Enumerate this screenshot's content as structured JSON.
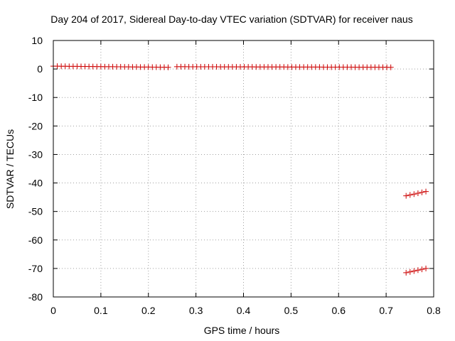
{
  "chart_data": {
    "type": "scatter",
    "title": "Day 204 of 2017, Sidereal Day-to-day VTEC variation (SDTVAR) for receiver naus",
    "xlabel": "GPS time / hours",
    "ylabel": "SDTVAR / TECUs",
    "xlim": [
      0,
      0.8
    ],
    "ylim": [
      -80,
      10
    ],
    "xticks": [
      0,
      0.1,
      0.2,
      0.3,
      0.4,
      0.5,
      0.6,
      0.7,
      0.8
    ],
    "xtick_labels": [
      "0",
      "0.1",
      "0.2",
      "0.3",
      "0.4",
      "0.5",
      "0.6",
      "0.7",
      "0.8"
    ],
    "yticks": [
      10,
      0,
      -10,
      -20,
      -30,
      -40,
      -50,
      -60,
      -70,
      -80
    ],
    "ytick_labels": [
      "10",
      "0",
      "-10",
      "-20",
      "-30",
      "-40",
      "-50",
      "-60",
      "-70",
      "-80"
    ],
    "grid": true,
    "marker": "plus",
    "colors": {
      "series": "#cc0000",
      "grid": "#a0a0a0",
      "axis": "#000000"
    },
    "series": [
      {
        "segments": [
          {
            "x_start": 0.0,
            "x_end": 0.24,
            "step": 0.00833,
            "y_start": 1.0,
            "y_end": 0.6
          },
          {
            "x_start": 0.26,
            "x_end": 0.708,
            "step": 0.00833,
            "y_start": 0.8,
            "y_end": 0.6
          },
          {
            "x_start": 0.742,
            "x_end": 0.783,
            "step": 0.00833,
            "y_start": -44.5,
            "y_end": -43.0
          },
          {
            "x_start": 0.742,
            "x_end": 0.783,
            "step": 0.00833,
            "y_start": -71.5,
            "y_end": -70.0
          }
        ]
      }
    ]
  }
}
